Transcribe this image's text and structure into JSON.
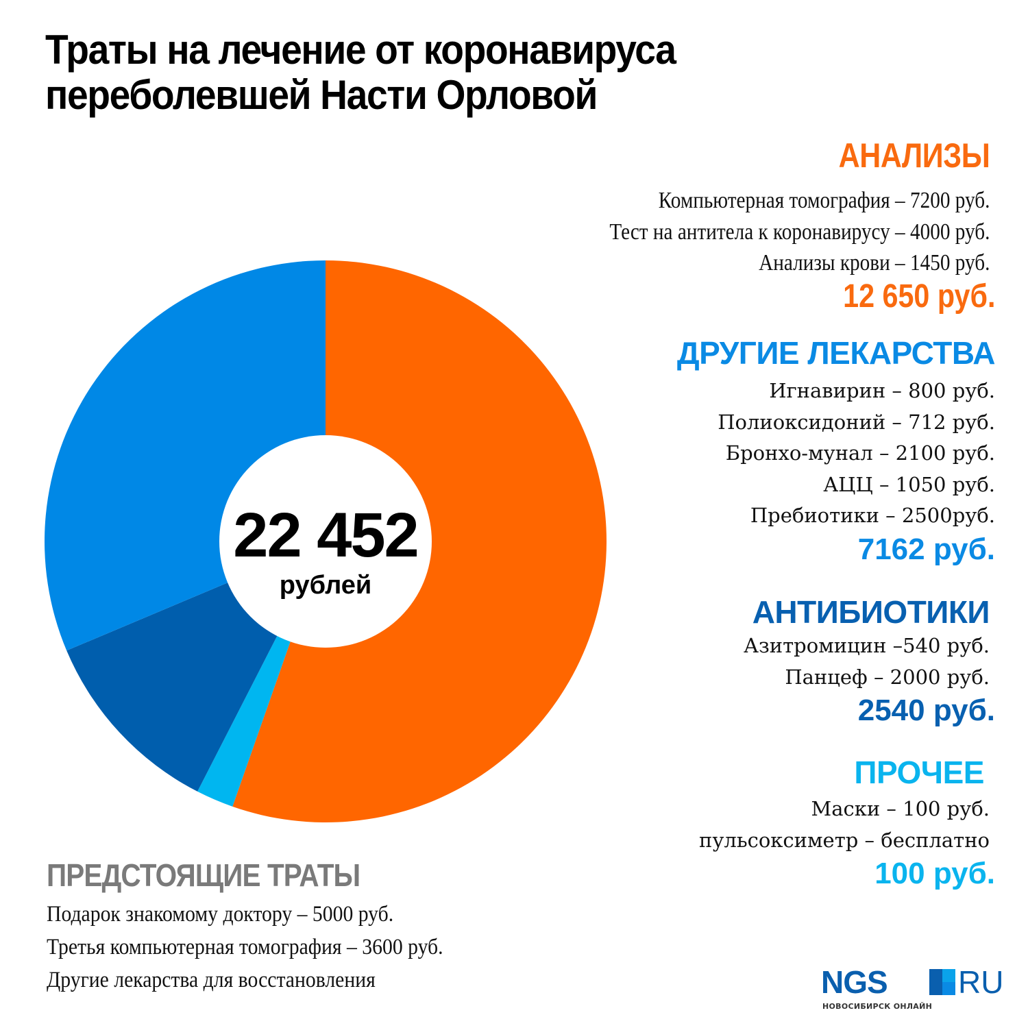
{
  "title": {
    "line1": "Траты на лечение от коронавируса",
    "line2": "переболевшей Насти Орловой"
  },
  "chart_data": {
    "type": "pie",
    "title": "Траты на лечение от коронавируса переболевшей Насти Орловой",
    "donut": true,
    "center_label": {
      "value": "22 452",
      "unit": "рублей"
    },
    "total": 22452,
    "slices": [
      {
        "name": "Анализы",
        "value": 12650,
        "color": "#ff6600"
      },
      {
        "name": "Прочее",
        "value": 100,
        "color": "#00b6f0"
      },
      {
        "name": "Антибиотики",
        "value": 2540,
        "color": "#005ead"
      },
      {
        "name": "Другие лекарства",
        "value": 7162,
        "color": "#0088e6"
      }
    ],
    "start": "top",
    "direction": "clockwise",
    "legend": "right"
  },
  "categories": [
    {
      "heading": "АНАЛИЗЫ",
      "color": "#f96a0f",
      "items": [
        "Компьютерная томография – 7200 руб.",
        "Тест на антитела к коронавирусу – 4000 руб.",
        "Анализы крови – 1450 руб."
      ],
      "total": "12 650 руб."
    },
    {
      "heading": "ДРУГИЕ ЛЕКАРСТВА",
      "color": "#0a8ae4",
      "items": [
        "Игнавирин – 800 руб.",
        "Полиоксидоний – 712 руб.",
        "Бронхо-мунал – 2100 руб.",
        "АЦЦ – 1050 руб.",
        "Пребиотики – 2500руб."
      ],
      "total": "7162 руб."
    },
    {
      "heading": "АНТИБИОТИКИ",
      "color": "#0860b0",
      "items": [
        "Азитромицин –540 руб.",
        "Панцеф – 2000 руб."
      ],
      "total": "2540 руб."
    },
    {
      "heading": "ПРОЧЕЕ",
      "color": "#0ab4ee",
      "items": [
        "Маски – 100 руб.",
        "пульсоксиметр – бесплатно"
      ],
      "total": "100 руб."
    }
  ],
  "future": {
    "heading": "ПРЕДСТОЯЩИЕ ТРАТЫ",
    "items": [
      "Подарок знакомому доктору – 5000 руб.",
      "Третья компьютерная томография – 3600 руб.",
      "Другие лекарства для восстановления"
    ]
  },
  "logo": {
    "brand": "NGS",
    "domain": "RU",
    "subtitle": "НОВОСИБИРСК ОНЛАЙН",
    "square_colors": [
      "#0a5fae",
      "#0aa3ea",
      "#0a5fae",
      "#0a8ae4"
    ]
  }
}
